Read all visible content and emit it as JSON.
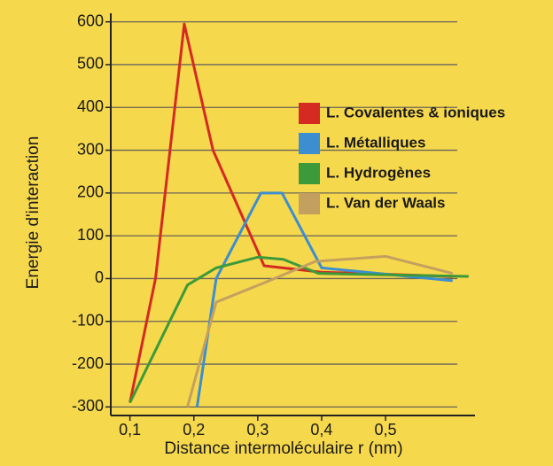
{
  "chart_data": {
    "type": "line",
    "ylabel": "Energie d'interaction",
    "xlabel": "Distance intermoléculaire r (nm)",
    "xlim": [
      0.07,
      0.64
    ],
    "ylim": [
      -320,
      620
    ],
    "xticks": [
      {
        "value": 0.1,
        "label": "0,1"
      },
      {
        "value": 0.2,
        "label": "0,2"
      },
      {
        "value": 0.3,
        "label": "0,3"
      },
      {
        "value": 0.4,
        "label": "0,4"
      },
      {
        "value": 0.5,
        "label": "0,5"
      }
    ],
    "yticks": [
      -300,
      -200,
      -100,
      0,
      100,
      200,
      300,
      400,
      500,
      600
    ],
    "grid": true,
    "legend": "upper right",
    "series": [
      {
        "name": "L. Covalentes & ioniques",
        "color": "#d42a22",
        "x": [
          0.1,
          0.14,
          0.185,
          0.23,
          0.31,
          0.4,
          0.605
        ],
        "values": [
          -290,
          0,
          595,
          300,
          30,
          15,
          5
        ]
      },
      {
        "name": "L. Métalliques",
        "color": "#3c8ed0",
        "x": [
          0.205,
          0.235,
          0.305,
          0.338,
          0.4,
          0.605
        ],
        "values": [
          -300,
          0,
          200,
          200,
          25,
          -5
        ]
      },
      {
        "name": "L. Hydrogènes",
        "color": "#3c9a3a",
        "x": [
          0.1,
          0.19,
          0.235,
          0.3,
          0.34,
          0.395,
          0.63
        ],
        "values": [
          -290,
          -15,
          25,
          50,
          45,
          12,
          5
        ]
      },
      {
        "name": "L. Van der Waals",
        "color": "#c4a060",
        "x": [
          0.19,
          0.235,
          0.31,
          0.39,
          0.5,
          0.605
        ],
        "values": [
          -300,
          -55,
          -10,
          40,
          52,
          12
        ]
      }
    ]
  }
}
